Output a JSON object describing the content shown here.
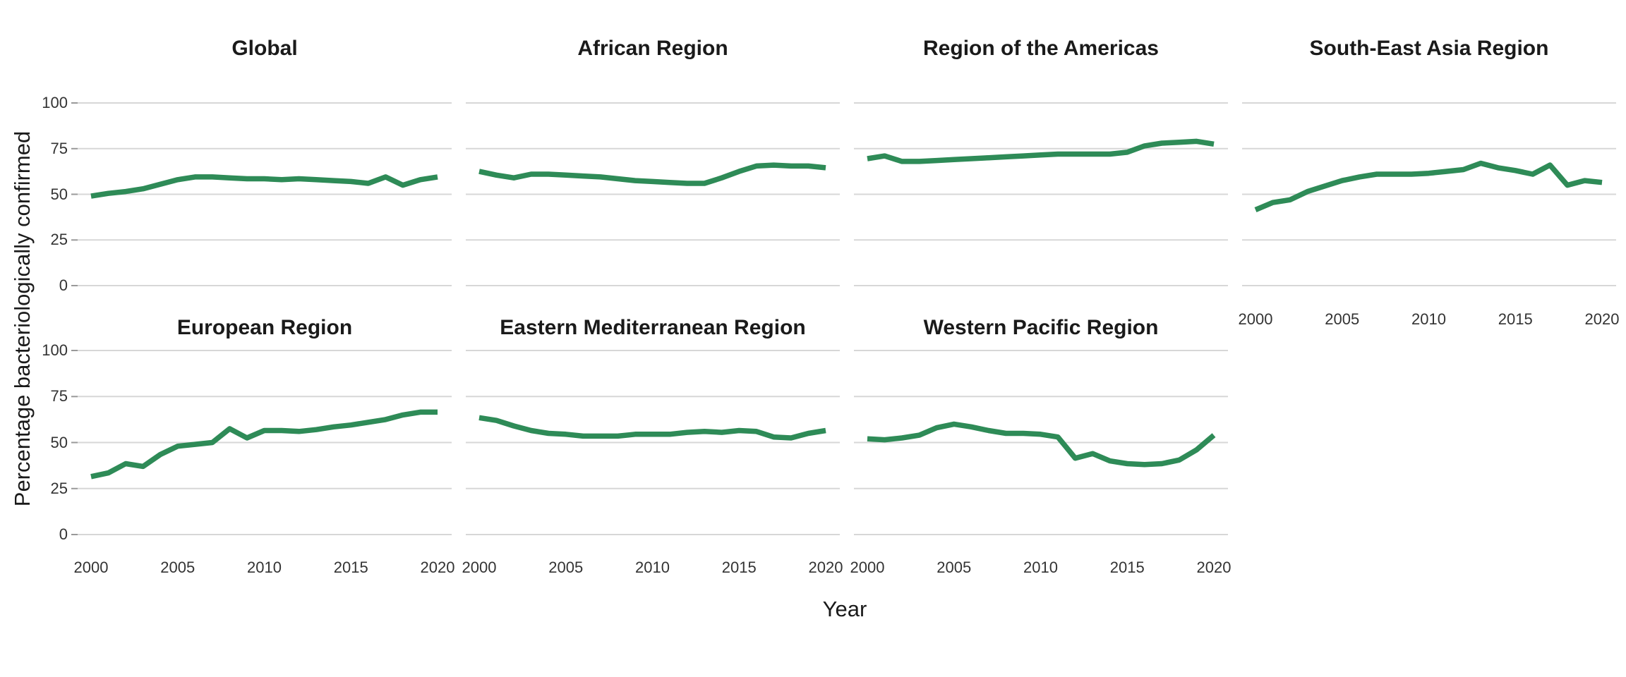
{
  "figure": {
    "y_axis_title": "Percentage bacteriologically confirmed",
    "x_axis_title": "Year",
    "colors": {
      "line": "#2e8b57",
      "gridline": "#d7d7d7",
      "axis_tick": "#999999",
      "title": "#1a1a1a",
      "tick_label": "#333333",
      "background": "#ffffff"
    }
  },
  "chart_data": {
    "type": "line",
    "layout": "facet-grid-2-rows-4-cols",
    "legend": "none",
    "grid": "horizontal-major-only",
    "xlabel": "Year",
    "ylabel": "Percentage bacteriologically confirmed",
    "ylim": [
      0,
      100
    ],
    "xlim": [
      2000,
      2020
    ],
    "x_ticks": [
      2000,
      2005,
      2010,
      2015,
      2020
    ],
    "y_ticks": [
      100,
      75,
      50,
      25,
      0
    ],
    "x": [
      2000,
      2001,
      2002,
      2003,
      2004,
      2005,
      2006,
      2007,
      2008,
      2009,
      2010,
      2011,
      2012,
      2013,
      2014,
      2015,
      2016,
      2017,
      2018,
      2019,
      2020
    ],
    "series": [
      {
        "name": "Global",
        "values": [
          49,
          50.5,
          51.5,
          53,
          55.5,
          58,
          59.5,
          59.5,
          59,
          58.5,
          58.5,
          58,
          58.5,
          58,
          57.5,
          57,
          56,
          59.5,
          55,
          58,
          59.5
        ]
      },
      {
        "name": "African Region",
        "values": [
          62.5,
          60.5,
          59,
          61,
          61,
          60.5,
          60,
          59.5,
          58.5,
          57.5,
          57,
          56.5,
          56,
          56,
          59,
          62.5,
          65.5,
          66,
          65.5,
          65.5,
          64.5
        ]
      },
      {
        "name": "Region of the Americas",
        "values": [
          69.5,
          71,
          68,
          68,
          68.5,
          69,
          69.5,
          70,
          70.5,
          71,
          71.5,
          72,
          72,
          72,
          72,
          73,
          76.5,
          78,
          78.5,
          79,
          77.5
        ]
      },
      {
        "name": "South-East Asia Region",
        "values": [
          41.5,
          45.5,
          47,
          51.5,
          54.5,
          57.5,
          59.5,
          61,
          61,
          61,
          61.5,
          62.5,
          63.5,
          67,
          64.5,
          63,
          61,
          66,
          55,
          57.5,
          56.5
        ]
      },
      {
        "name": "European Region",
        "values": [
          31.5,
          33.5,
          38.5,
          37,
          43.5,
          48,
          49,
          50,
          57.5,
          52.5,
          56.5,
          56.5,
          56,
          57,
          58.5,
          59.5,
          61,
          62.5,
          65,
          66.5,
          66.5
        ]
      },
      {
        "name": "Eastern Mediterranean Region",
        "values": [
          63.5,
          62,
          59,
          56.5,
          55,
          54.5,
          53.5,
          53.5,
          53.5,
          54.5,
          54.5,
          54.5,
          55.5,
          56,
          55.5,
          56.5,
          56,
          53,
          52.5,
          55,
          56.5
        ]
      },
      {
        "name": "Western Pacific Region",
        "values": [
          52,
          51.5,
          52.5,
          54,
          58,
          60,
          58.5,
          56.5,
          55,
          55,
          54.5,
          53,
          41.5,
          44,
          40,
          38.5,
          38,
          38.5,
          40.5,
          46,
          54
        ]
      }
    ]
  }
}
